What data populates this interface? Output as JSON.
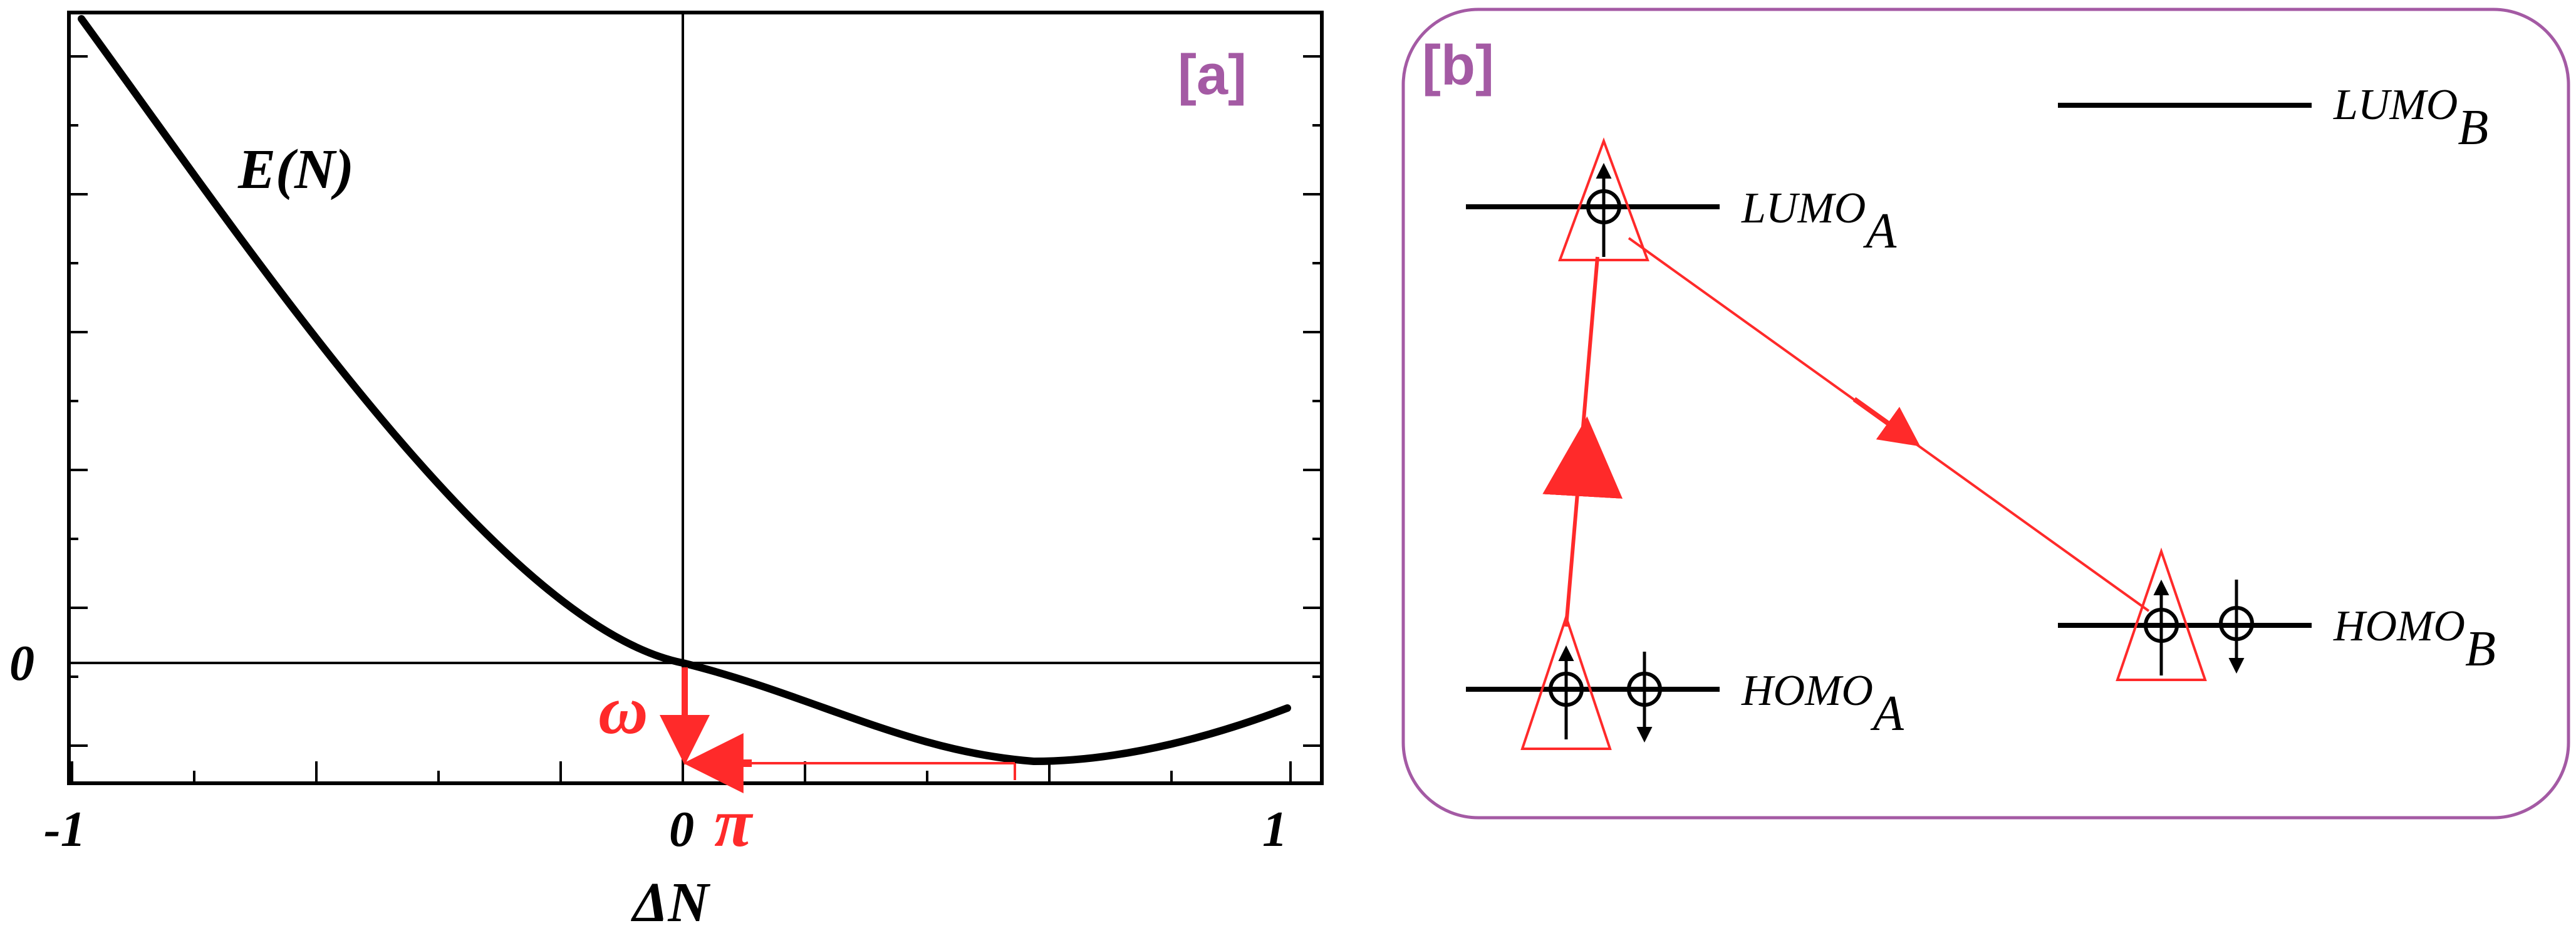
{
  "panel_a": {
    "tag": "[a]",
    "curve_label": "E(N)",
    "x_axis_label": "ΔN",
    "x_ticks": [
      "-1",
      "0",
      "1"
    ],
    "y_ticks": [
      "0"
    ],
    "omega_label": "ω",
    "pi_label": "π",
    "colors": {
      "curve": "#000000",
      "accent": "#ff2a2a",
      "tag": "#a45aa4"
    }
  },
  "panel_b": {
    "tag": "[b]",
    "levels": {
      "lumo_a": {
        "label": "LUMO",
        "subscript": "A"
      },
      "homo_a": {
        "label": "HOMO",
        "subscript": "A"
      },
      "lumo_b": {
        "label": "LUMO",
        "subscript": "B"
      },
      "homo_b": {
        "label": "HOMO",
        "subscript": "B"
      }
    },
    "colors": {
      "frame": "#a45aa4",
      "arrow": "#ff2a2a",
      "level": "#000000"
    }
  }
}
